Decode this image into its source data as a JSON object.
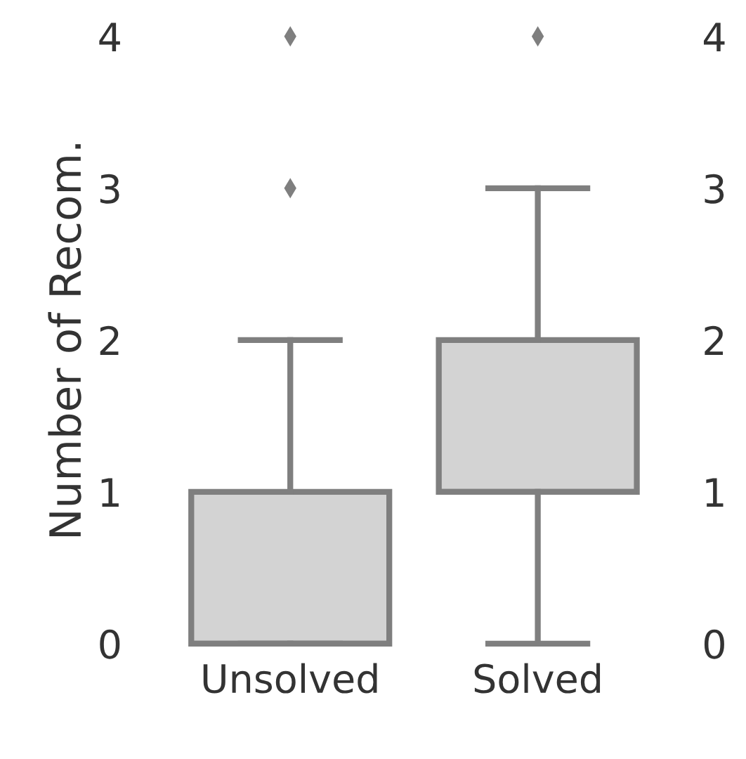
{
  "chart_data": {
    "type": "box",
    "ylabel": "Number of Recom.",
    "categories": [
      "Unsolved",
      "Solved"
    ],
    "boxes": [
      {
        "low": 0,
        "q1": 0,
        "median": 0,
        "q3": 1,
        "high": 2,
        "outliers": [
          3,
          4
        ]
      },
      {
        "low": 0,
        "q1": 1,
        "median": 1,
        "q3": 2,
        "high": 3,
        "outliers": [
          4
        ]
      }
    ],
    "color": "#d3d3d3",
    "marker": "diamond",
    "ylim": [
      0,
      4
    ],
    "yticks": [
      0,
      1,
      2,
      3,
      4
    ],
    "y2lim": [
      0,
      4
    ],
    "y2ticks": [
      0,
      1,
      2,
      3,
      4
    ],
    "legend": false
  }
}
